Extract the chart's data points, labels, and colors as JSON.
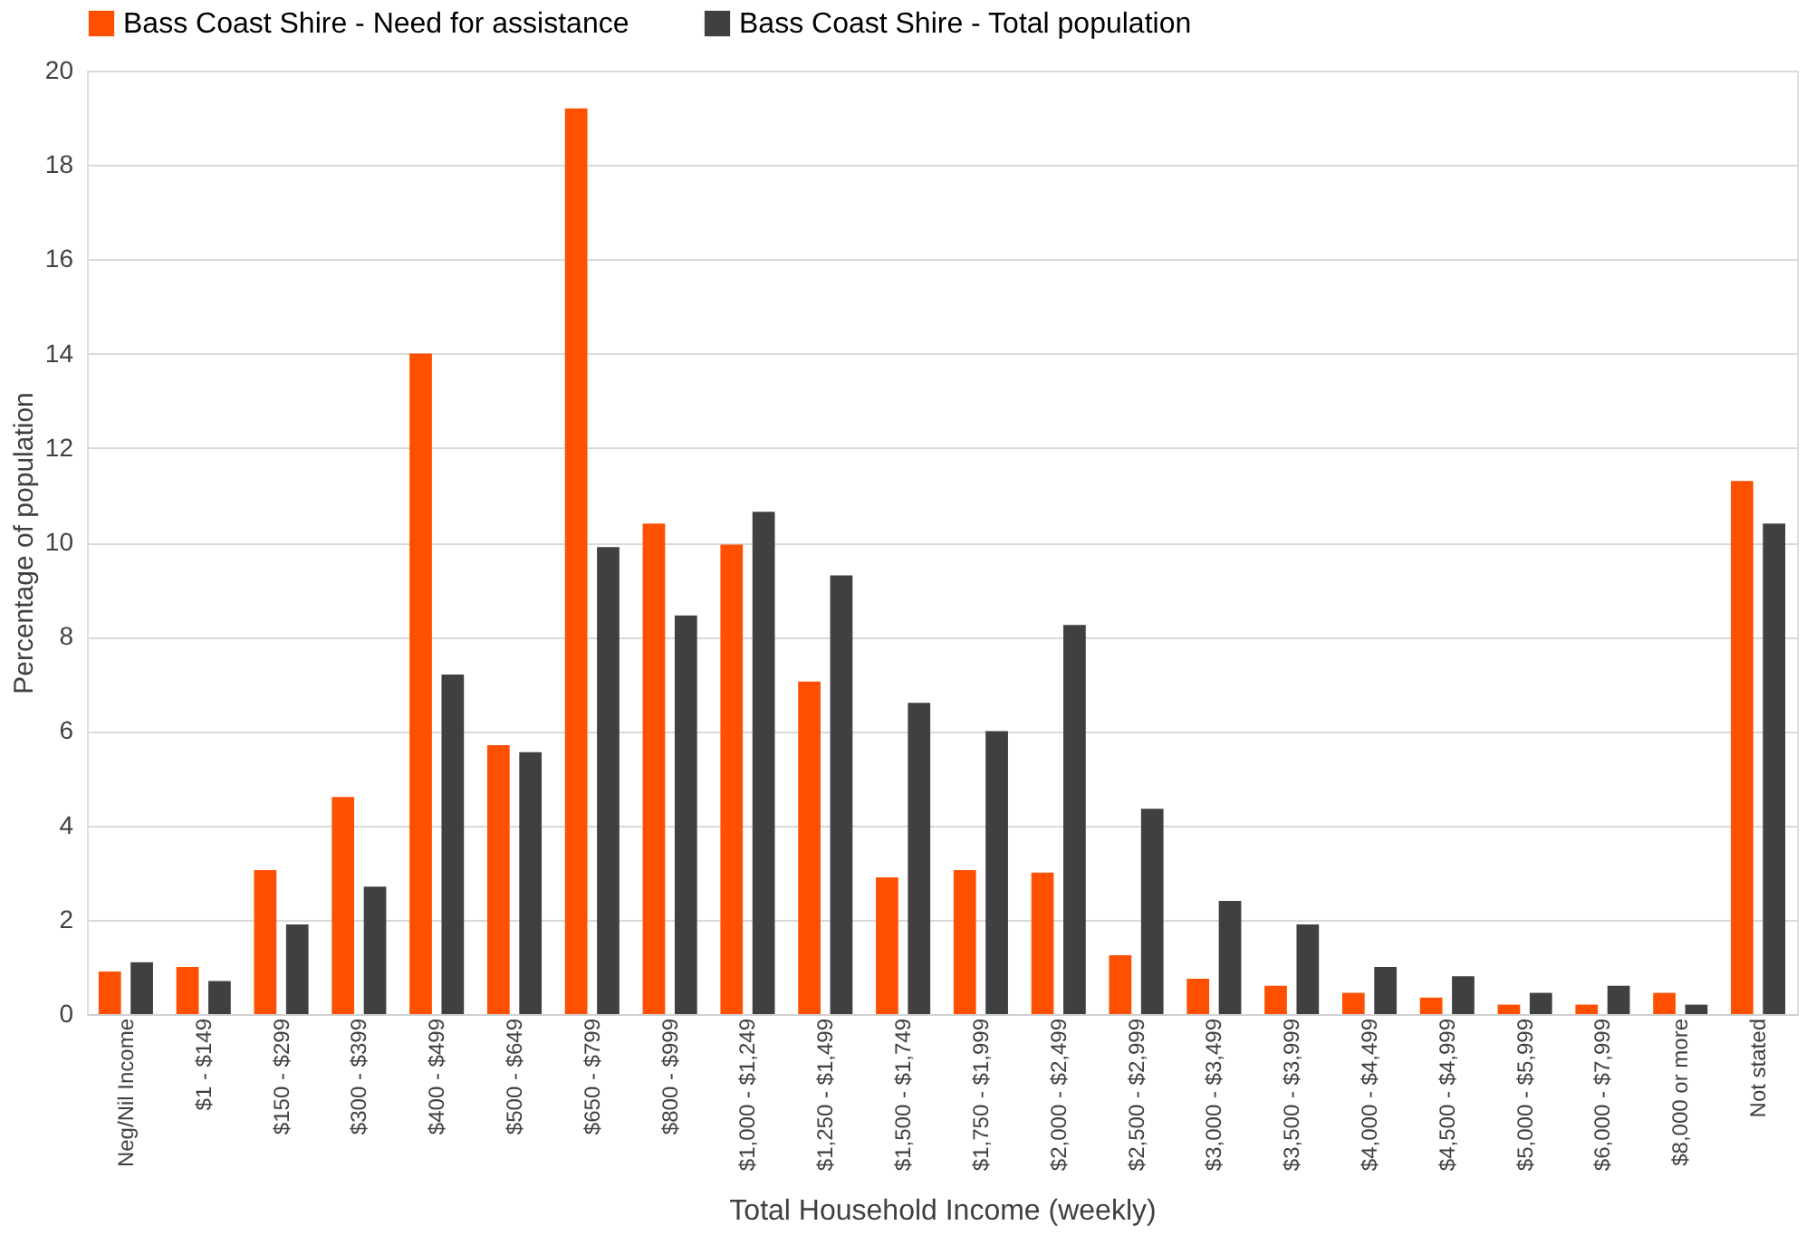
{
  "chart_data": {
    "type": "bar",
    "xlabel": "Total Household Income (weekly)",
    "ylabel": "Percentage of population",
    "categories": [
      "Neg/Nil Income",
      "$1 - $149",
      "$150 - $299",
      "$300 - $399",
      "$400 - $499",
      "$500 - $649",
      "$650 - $799",
      "$800 - $999",
      "$1,000 - $1,249",
      "$1,250 - $1,499",
      "$1,500 - $1,749",
      "$1,750 - $1,999",
      "$2,000 - $2,499",
      "$2,500 - $2,999",
      "$3,000 - $3,499",
      "$3,500 - $3,999",
      "$4,000 - $4,499",
      "$4,500 - $4,999",
      "$5,000 - $5,999",
      "$6,000 - $7,999",
      "$8,000 or more",
      "Not stated"
    ],
    "series": [
      {
        "name": "Bass Coast Shire - Need for assistance",
        "color": "#fe5000",
        "values": [
          0.9,
          1.0,
          3.05,
          4.6,
          14.0,
          5.7,
          19.2,
          10.4,
          9.95,
          7.05,
          2.9,
          3.05,
          3.0,
          1.25,
          0.75,
          0.6,
          0.45,
          0.35,
          0.2,
          0.2,
          0.45,
          11.3
        ]
      },
      {
        "name": "Bass Coast Shire - Total population",
        "color": "#404040",
        "values": [
          1.1,
          0.7,
          1.9,
          2.7,
          7.2,
          5.55,
          9.9,
          8.45,
          10.65,
          9.3,
          6.6,
          6.0,
          8.25,
          4.35,
          2.4,
          1.9,
          1.0,
          0.8,
          0.45,
          0.6,
          0.2,
          10.4
        ]
      }
    ],
    "ylim": [
      0,
      20
    ],
    "yticks": [
      0,
      2,
      4,
      6,
      8,
      10,
      12,
      14,
      16,
      18,
      20
    ],
    "grid": "y",
    "legend": "top"
  }
}
